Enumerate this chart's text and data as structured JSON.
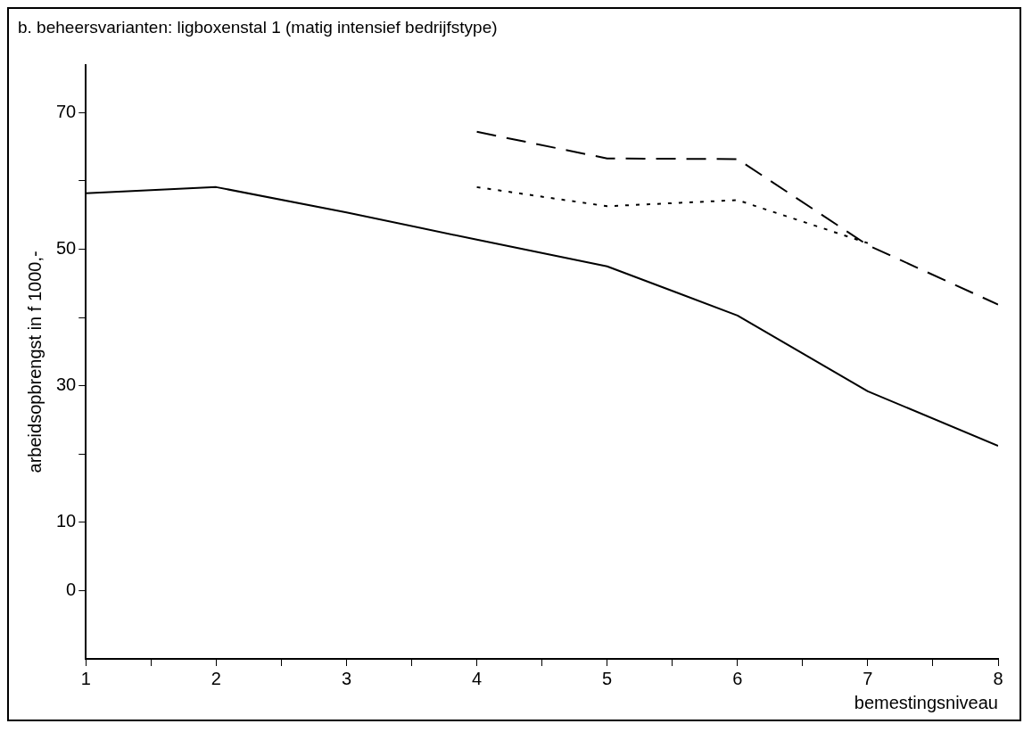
{
  "chart_data": {
    "type": "line",
    "title": "b. beheersvarianten: ligboxenstal 1 (matig intensief bedrijfstype)",
    "xlabel": "bemestingsniveau",
    "ylabel": "arbeidsopbrengst in f 1000,-",
    "x": [
      1,
      2,
      3,
      4,
      5,
      6,
      7,
      8
    ],
    "series": [
      {
        "color": "#000000",
        "line_style": "solid",
        "values": [
          58.2,
          59.1,
          55.4,
          51.4,
          47.5,
          40.3,
          29.2,
          21.2
        ]
      },
      {
        "color": "#000000",
        "line_style": "dashed",
        "values": [
          null,
          null,
          null,
          67.2,
          63.3,
          63.2,
          50.6,
          41.9
        ]
      },
      {
        "color": "#000000",
        "line_style": "dotted",
        "values": [
          null,
          null,
          null,
          59.1,
          56.3,
          57.2,
          50.9,
          null
        ]
      }
    ],
    "xlim": [
      1,
      8
    ],
    "xticks": [
      1,
      {
        "value": 1.5,
        "label": null
      },
      2,
      {
        "value": 2.5,
        "label": null
      },
      3,
      {
        "value": 3.5,
        "label": null
      },
      4,
      {
        "value": 4.5,
        "label": null
      },
      5,
      {
        "value": 5.5,
        "label": null
      },
      6,
      {
        "value": 6.5,
        "label": null
      },
      7,
      {
        "value": 7.5,
        "label": null
      },
      8
    ],
    "ylim": [
      -10,
      77
    ],
    "yticks": [
      0,
      10,
      {
        "value": 20,
        "label": null
      },
      30,
      {
        "value": 40,
        "label": null
      },
      50,
      {
        "value": 60,
        "label": null
      },
      70
    ],
    "marker": "none",
    "grid": false,
    "legend": false
  }
}
